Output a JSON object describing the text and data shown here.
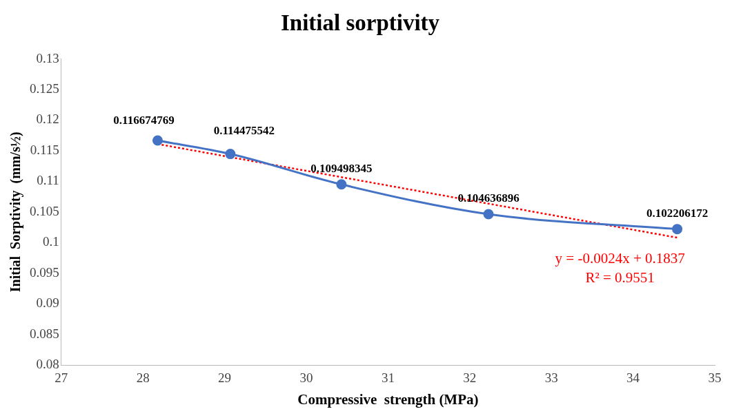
{
  "chart_data": {
    "type": "line",
    "title": "Initial sorptivity",
    "xlabel": "Compressive  strength (MPa)",
    "ylabel": "Initial  Sorptivity  (mm/s½)",
    "series": [
      {
        "color": "#4472c4",
        "x": [
          28.18,
          29.07,
          30.43,
          32.23,
          34.54
        ],
        "values": [
          0.116674769,
          0.114475542,
          0.109498345,
          0.104636896,
          0.102206172
        ],
        "value_labels": [
          "0.116674769",
          "0.114475542",
          "0.109498345",
          "0.104636896",
          "0.102206172"
        ]
      },
      {
        "type": "line",
        "color": "#ff0000",
        "line_style": "dotted",
        "marker": "none",
        "x": [
          28.18,
          34.54
        ],
        "values": [
          0.1161,
          0.1008
        ]
      }
    ],
    "xlim": [
      27,
      35
    ],
    "xticks": [
      27,
      28,
      29,
      30,
      31,
      32,
      33,
      34,
      35
    ],
    "ylim": [
      0.08,
      0.13
    ],
    "yticks": [
      0.08,
      0.085,
      0.09,
      0.095,
      0.1,
      0.105,
      0.11,
      0.115,
      0.12,
      0.125,
      0.13
    ],
    "marker": "circle",
    "line_style": "solid",
    "grid": false,
    "legend": false,
    "annotations": [
      "y = -0.0024x + 0.1837",
      "R² = 0.9551"
    ]
  }
}
